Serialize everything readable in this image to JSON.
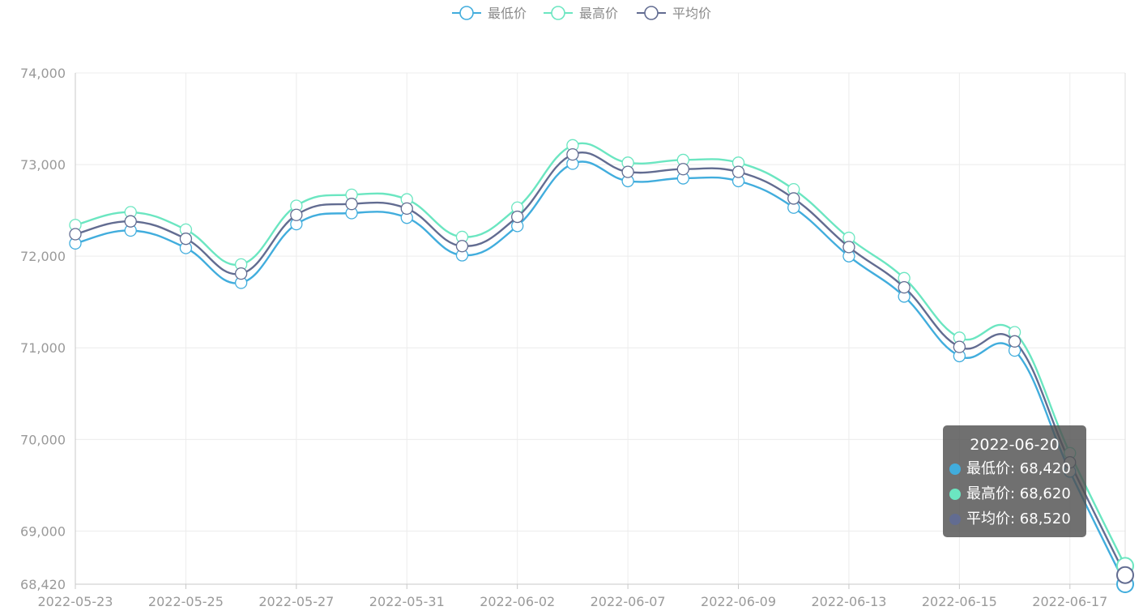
{
  "chart_data": {
    "type": "line",
    "smooth": true,
    "x": [
      "2022-05-23",
      "2022-05-24",
      "2022-05-25",
      "2022-05-26",
      "2022-05-27",
      "2022-05-30",
      "2022-05-31",
      "2022-06-01",
      "2022-06-02",
      "2022-06-06",
      "2022-06-07",
      "2022-06-08",
      "2022-06-09",
      "2022-06-10",
      "2022-06-13",
      "2022-06-14",
      "2022-06-15",
      "2022-06-16",
      "2022-06-17",
      "2022-06-20"
    ],
    "x_tick_labels": [
      "2022-05-23",
      "2022-05-25",
      "2022-05-27",
      "2022-05-31",
      "2022-06-02",
      "2022-06-07",
      "2022-06-09",
      "2022-06-13",
      "2022-06-15",
      "2022-06-17"
    ],
    "series": [
      {
        "name": "最低价",
        "color": "#41addd",
        "values": [
          72140,
          72280,
          72090,
          71710,
          72350,
          72470,
          72420,
          72010,
          72330,
          73010,
          72820,
          72850,
          72820,
          72530,
          72000,
          71560,
          70910,
          70970,
          69650,
          68420
        ]
      },
      {
        "name": "最高价",
        "color": "#6be6c1",
        "values": [
          72340,
          72480,
          72290,
          71910,
          72550,
          72670,
          72620,
          72210,
          72530,
          73210,
          73020,
          73050,
          73020,
          72730,
          72200,
          71760,
          71110,
          71170,
          69850,
          68620
        ]
      },
      {
        "name": "平均价",
        "color": "#626c91",
        "values": [
          72240,
          72380,
          72190,
          71810,
          72450,
          72570,
          72520,
          72110,
          72430,
          73110,
          72920,
          72950,
          72920,
          72630,
          72100,
          71660,
          71010,
          71070,
          69750,
          68520
        ]
      }
    ],
    "ylim": [
      68420,
      74000
    ],
    "y_tick_labels": [
      "68,420",
      "69,000",
      "70,000",
      "71,000",
      "72,000",
      "73,000",
      "74,000"
    ],
    "grid": true,
    "legend_position": "top-center",
    "tooltip": {
      "title": "2022-06-20",
      "rows": [
        {
          "label": "最低价: 68,420",
          "color": "#41addd"
        },
        {
          "label": "最高价: 68,620",
          "color": "#6be6c1"
        },
        {
          "label": "平均价: 68,520",
          "color": "#626c91"
        }
      ]
    }
  }
}
